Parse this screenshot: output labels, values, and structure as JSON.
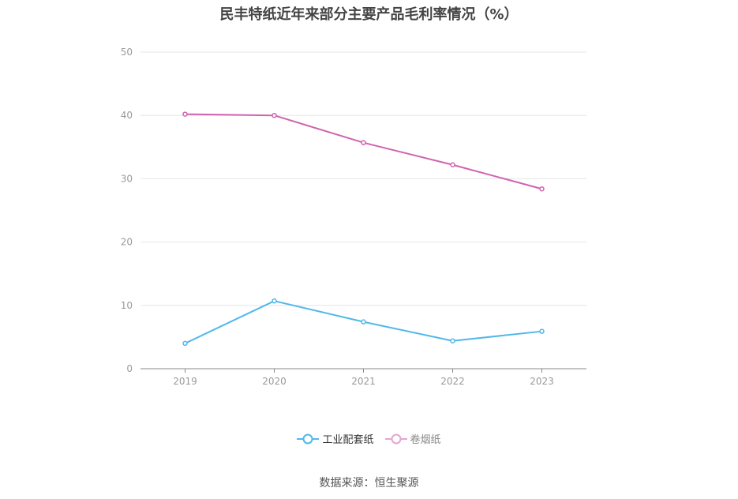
{
  "colors": {
    "industrial": "#4fb8ea",
    "cigarette": "#d063b0",
    "cigarette_legend": "#e4a6d4",
    "grid": "#e6e6e6",
    "axis": "#888888",
    "tick_text": "#999999"
  },
  "chart_data": {
    "type": "line",
    "title": "民丰特纸近年来部分主要产品毛利率情况（%）",
    "xlabel": "",
    "ylabel": "",
    "categories": [
      "2019",
      "2020",
      "2021",
      "2022",
      "2023"
    ],
    "ylim": [
      0,
      50
    ],
    "yticks": [
      0,
      10,
      20,
      30,
      40,
      50
    ],
    "grid": true,
    "legend_position": "bottom",
    "series": [
      {
        "name": "工业配套纸",
        "values": [
          4.0,
          10.7,
          7.4,
          4.4,
          5.9
        ]
      },
      {
        "name": "卷烟纸",
        "values": [
          40.2,
          40.0,
          35.7,
          32.2,
          28.4
        ]
      }
    ]
  },
  "footer": {
    "source": "数据来源：恒生聚源"
  }
}
